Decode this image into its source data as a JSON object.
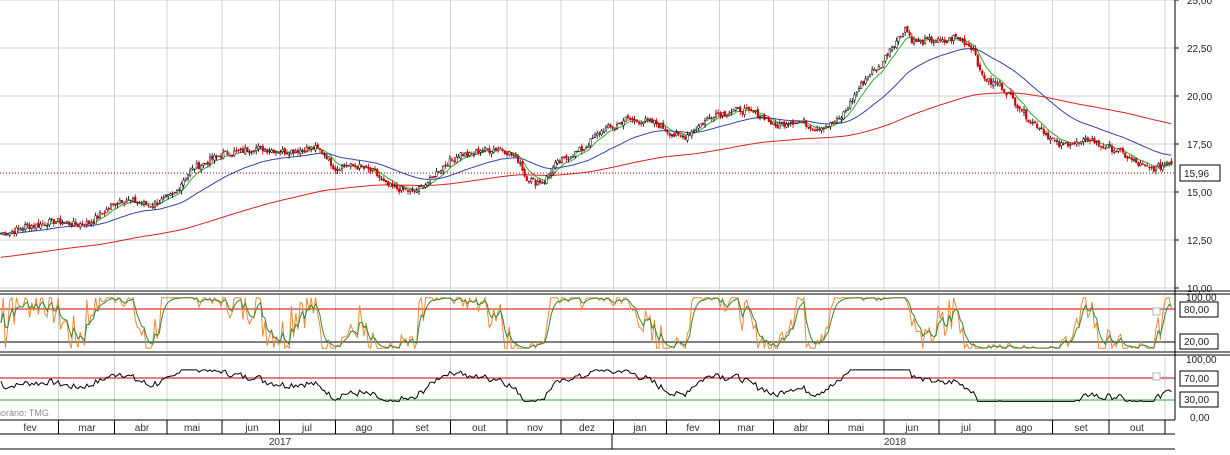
{
  "chart_data": [
    {
      "type": "candlestick",
      "y_axis": {
        "ticks": [
          "25,00",
          "22,50",
          "20,00",
          "17,50",
          "15,00",
          "12,50",
          "10,00"
        ],
        "range": [
          10,
          25
        ]
      },
      "last_price_label": "15,96",
      "last_price": 15.96,
      "colors": {
        "up": "#000000",
        "down": "#cc0000",
        "ma_short": "#33aa33",
        "ma_medium": "#3344aa",
        "ma_long": "#dd2222",
        "last_price_line": "#8b0000"
      },
      "price_path": [
        [
          0,
          12.85
        ],
        [
          10,
          12.9
        ],
        [
          25,
          13.2
        ],
        [
          40,
          13.3
        ],
        [
          55,
          13.5
        ],
        [
          75,
          13.3
        ],
        [
          90,
          13.4
        ],
        [
          100,
          13.8
        ],
        [
          110,
          14.2
        ],
        [
          120,
          14.6
        ],
        [
          135,
          14.5
        ],
        [
          150,
          14.3
        ],
        [
          160,
          14.5
        ],
        [
          175,
          14.9
        ],
        [
          185,
          15.8
        ],
        [
          195,
          16.3
        ],
        [
          205,
          16.5
        ],
        [
          215,
          16.8
        ],
        [
          225,
          17.0
        ],
        [
          240,
          17.1
        ],
        [
          255,
          17.3
        ],
        [
          270,
          17.2
        ],
        [
          285,
          17.1
        ],
        [
          300,
          17.2
        ],
        [
          315,
          17.3
        ],
        [
          325,
          17.0
        ],
        [
          335,
          16.2
        ],
        [
          345,
          16.4
        ],
        [
          360,
          16.3
        ],
        [
          375,
          16.0
        ],
        [
          385,
          15.4
        ],
        [
          395,
          15.2
        ],
        [
          405,
          15.1
        ],
        [
          415,
          15.0
        ],
        [
          430,
          15.6
        ],
        [
          440,
          16.2
        ],
        [
          450,
          16.6
        ],
        [
          460,
          17.0
        ],
        [
          470,
          16.9
        ],
        [
          480,
          17.2
        ],
        [
          490,
          17.2
        ],
        [
          500,
          17.3
        ],
        [
          510,
          17.0
        ],
        [
          520,
          16.6
        ],
        [
          525,
          15.8
        ],
        [
          535,
          15.5
        ],
        [
          545,
          15.6
        ],
        [
          555,
          16.4
        ],
        [
          570,
          16.9
        ],
        [
          585,
          17.3
        ],
        [
          595,
          17.9
        ],
        [
          605,
          18.3
        ],
        [
          615,
          18.4
        ],
        [
          625,
          18.8
        ],
        [
          640,
          18.7
        ],
        [
          655,
          18.6
        ],
        [
          665,
          18.3
        ],
        [
          675,
          17.9
        ],
        [
          685,
          17.9
        ],
        [
          695,
          18.3
        ],
        [
          705,
          18.7
        ],
        [
          715,
          19.1
        ],
        [
          725,
          19.1
        ],
        [
          740,
          19.3
        ],
        [
          755,
          19.1
        ],
        [
          765,
          18.9
        ],
        [
          775,
          18.4
        ],
        [
          790,
          18.7
        ],
        [
          805,
          18.6
        ],
        [
          815,
          18.3
        ],
        [
          830,
          18.5
        ],
        [
          840,
          18.8
        ],
        [
          850,
          19.6
        ],
        [
          860,
          20.5
        ],
        [
          870,
          21.2
        ],
        [
          880,
          21.5
        ],
        [
          890,
          22.5
        ],
        [
          900,
          23.1
        ],
        [
          905,
          23.6
        ],
        [
          912,
          22.9
        ],
        [
          920,
          22.8
        ],
        [
          930,
          22.9
        ],
        [
          945,
          22.8
        ],
        [
          955,
          23.1
        ],
        [
          965,
          22.8
        ],
        [
          975,
          22.4
        ],
        [
          980,
          21.2
        ],
        [
          990,
          20.7
        ],
        [
          1000,
          20.6
        ],
        [
          1010,
          20.0
        ],
        [
          1020,
          19.4
        ],
        [
          1030,
          18.7
        ],
        [
          1040,
          18.4
        ],
        [
          1050,
          17.8
        ],
        [
          1060,
          17.4
        ],
        [
          1070,
          17.6
        ],
        [
          1080,
          17.5
        ],
        [
          1090,
          17.8
        ],
        [
          1100,
          17.4
        ],
        [
          1110,
          17.3
        ],
        [
          1120,
          17.1
        ],
        [
          1130,
          16.7
        ],
        [
          1140,
          16.4
        ],
        [
          1150,
          16.2
        ],
        [
          1160,
          16.3
        ],
        [
          1170,
          16.7
        ],
        [
          1175,
          15.96
        ]
      ]
    },
    {
      "type": "line",
      "name": "stochastic",
      "y_axis": {
        "ticks": [
          "80,00",
          "20,00"
        ],
        "top_tick": "100,00"
      },
      "levels": [
        80,
        20
      ]
    },
    {
      "type": "line",
      "name": "rsi",
      "y_axis": {
        "ticks": [
          "70,00",
          "30,00"
        ],
        "top_tick": "100,00",
        "bottom_tick": "0,00"
      },
      "levels": [
        70,
        30
      ]
    }
  ],
  "footer": {
    "timezone_label": "horário: TMG",
    "months": [
      {
        "label": "fev",
        "x": 30
      },
      {
        "label": "mar",
        "x": 87
      },
      {
        "label": "abr",
        "x": 142
      },
      {
        "label": "mai",
        "x": 192
      },
      {
        "label": "jun",
        "x": 252
      },
      {
        "label": "jul",
        "x": 307
      },
      {
        "label": "ago",
        "x": 364
      },
      {
        "label": "set",
        "x": 422
      },
      {
        "label": "out",
        "x": 479
      },
      {
        "label": "nov",
        "x": 535
      },
      {
        "label": "dez",
        "x": 587
      },
      {
        "label": "jan",
        "x": 640
      },
      {
        "label": "fev",
        "x": 693
      },
      {
        "label": "mar",
        "x": 746
      },
      {
        "label": "abr",
        "x": 801
      },
      {
        "label": "mai",
        "x": 856
      },
      {
        "label": "jun",
        "x": 912
      },
      {
        "label": "jul",
        "x": 966
      },
      {
        "label": "ago",
        "x": 1024
      },
      {
        "label": "set",
        "x": 1081
      },
      {
        "label": "out",
        "x": 1137
      }
    ],
    "years": [
      {
        "label": "2017",
        "x": 280
      },
      {
        "label": "2018",
        "x": 895
      }
    ]
  }
}
